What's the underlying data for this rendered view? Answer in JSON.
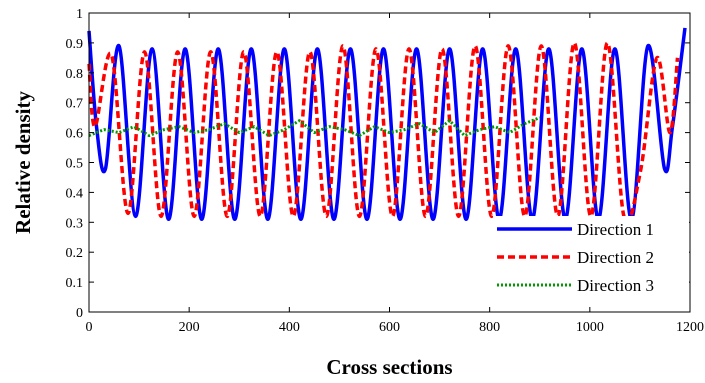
{
  "chart_data": {
    "type": "line",
    "title": "",
    "xlabel": "Cross sections",
    "ylabel": "Relative density",
    "xlim": [
      0,
      1200
    ],
    "ylim": [
      0,
      1
    ],
    "xticks": [
      "0",
      "200",
      "400",
      "600",
      "800",
      "1000",
      "1200"
    ],
    "yticks": [
      "0",
      "0.1",
      "0.2",
      "0.3",
      "0.4",
      "0.5",
      "0.6",
      "0.7",
      "0.8",
      "0.9",
      "1"
    ],
    "grid": false,
    "legend_position": "bottom-right",
    "series": [
      {
        "name": "Direction 1",
        "color": "#0000ff",
        "style": "solid",
        "x": [
          0,
          15,
          33,
          60,
          93,
          126,
          159,
          192,
          225,
          258,
          291,
          324,
          357,
          390,
          423,
          456,
          489,
          522,
          555,
          588,
          621,
          654,
          687,
          720,
          753,
          786,
          819,
          852,
          885,
          918,
          951,
          984,
          1017,
          1050,
          1083,
          1116,
          1149,
          1165,
          1190
        ],
        "y": [
          0.94,
          0.62,
          0.48,
          0.89,
          0.32,
          0.88,
          0.31,
          0.88,
          0.31,
          0.88,
          0.31,
          0.88,
          0.31,
          0.88,
          0.31,
          0.88,
          0.31,
          0.88,
          0.31,
          0.88,
          0.31,
          0.88,
          0.31,
          0.88,
          0.31,
          0.88,
          0.31,
          0.88,
          0.31,
          0.88,
          0.31,
          0.88,
          0.31,
          0.88,
          0.31,
          0.89,
          0.48,
          0.62,
          0.95
        ]
      },
      {
        "name": "Direction 2",
        "color": "#ff0000",
        "style": "dashed",
        "x": [
          0,
          12,
          45,
          78,
          111,
          144,
          177,
          210,
          243,
          276,
          309,
          342,
          375,
          408,
          441,
          474,
          507,
          540,
          573,
          606,
          639,
          672,
          705,
          738,
          771,
          804,
          837,
          870,
          903,
          936,
          969,
          1002,
          1035,
          1068,
          1101,
          1134,
          1160,
          1175
        ],
        "y": [
          0.83,
          0.62,
          0.86,
          0.33,
          0.87,
          0.32,
          0.87,
          0.32,
          0.87,
          0.32,
          0.87,
          0.32,
          0.87,
          0.32,
          0.87,
          0.32,
          0.89,
          0.32,
          0.88,
          0.32,
          0.88,
          0.32,
          0.88,
          0.32,
          0.89,
          0.32,
          0.89,
          0.32,
          0.89,
          0.32,
          0.9,
          0.32,
          0.9,
          0.32,
          0.47,
          0.85,
          0.6,
          0.85
        ]
      },
      {
        "name": "Direction 3",
        "color": "#009900",
        "style": "dotted",
        "x": [
          0,
          30,
          60,
          90,
          120,
          150,
          180,
          210,
          240,
          270,
          300,
          330,
          360,
          390,
          420,
          450,
          480,
          510,
          540,
          570,
          600,
          630,
          660,
          690,
          720,
          750,
          780,
          810,
          840,
          870,
          900
        ],
        "y": [
          0.59,
          0.61,
          0.6,
          0.62,
          0.59,
          0.61,
          0.62,
          0.6,
          0.61,
          0.63,
          0.6,
          0.62,
          0.59,
          0.61,
          0.64,
          0.6,
          0.62,
          0.61,
          0.59,
          0.62,
          0.6,
          0.61,
          0.63,
          0.6,
          0.64,
          0.59,
          0.61,
          0.62,
          0.6,
          0.63,
          0.65
        ]
      }
    ]
  }
}
